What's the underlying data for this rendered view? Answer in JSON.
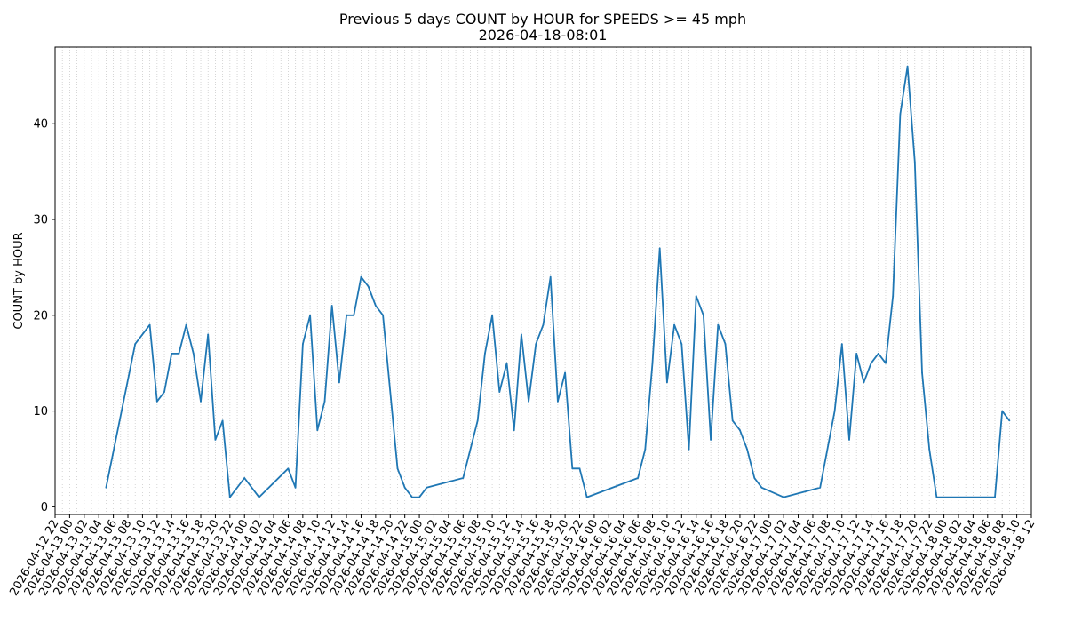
{
  "chart_data": {
    "type": "line",
    "title": "Previous 5 days COUNT by HOUR for SPEEDS >= 45 mph",
    "subtitle": "2026-04-18-08:01",
    "xlabel": "",
    "ylabel": "COUNT by HOUR",
    "ylim": [
      -0.8,
      48
    ],
    "yticks": [
      0,
      10,
      20,
      30,
      40
    ],
    "xlim": [
      "2026-04-12 22",
      "2026-04-18 12"
    ],
    "grid": {
      "x": true,
      "y": false
    },
    "line_color": "#1f77b4",
    "xtick_labels": [
      "2026-04-12 22",
      "2026-04-13 00",
      "2026-04-13 02",
      "2026-04-13 04",
      "2026-04-13 06",
      "2026-04-13 08",
      "2026-04-13 10",
      "2026-04-13 12",
      "2026-04-13 14",
      "2026-04-13 16",
      "2026-04-13 18",
      "2026-04-13 20",
      "2026-04-13 22",
      "2026-04-14 00",
      "2026-04-14 02",
      "2026-04-14 04",
      "2026-04-14 06",
      "2026-04-14 08",
      "2026-04-14 10",
      "2026-04-14 12",
      "2026-04-14 14",
      "2026-04-14 16",
      "2026-04-14 18",
      "2026-04-14 20",
      "2026-04-14 22",
      "2026-04-15 00",
      "2026-04-15 02",
      "2026-04-15 04",
      "2026-04-15 06",
      "2026-04-15 08",
      "2026-04-15 10",
      "2026-04-15 12",
      "2026-04-15 14",
      "2026-04-15 16",
      "2026-04-15 18",
      "2026-04-15 20",
      "2026-04-15 22",
      "2026-04-16 00",
      "2026-04-16 02",
      "2026-04-16 04",
      "2026-04-16 06",
      "2026-04-16 08",
      "2026-04-16 10",
      "2026-04-16 12",
      "2026-04-16 14",
      "2026-04-16 16",
      "2026-04-16 18",
      "2026-04-16 20",
      "2026-04-16 22",
      "2026-04-17 00",
      "2026-04-17 02",
      "2026-04-17 04",
      "2026-04-17 06",
      "2026-04-17 08",
      "2026-04-17 10",
      "2026-04-17 12",
      "2026-04-17 14",
      "2026-04-17 16",
      "2026-04-17 18",
      "2026-04-17 20",
      "2026-04-17 22",
      "2026-04-18 00",
      "2026-04-18 02",
      "2026-04-18 04",
      "2026-04-18 06",
      "2026-04-18 08",
      "2026-04-18 10",
      "2026-04-18 12"
    ],
    "series": [
      {
        "points": [
          [
            "2026-04-13 05",
            2
          ],
          [
            "2026-04-13 09",
            17
          ],
          [
            "2026-04-13 11",
            19
          ],
          [
            "2026-04-13 12",
            11
          ],
          [
            "2026-04-13 13",
            12
          ],
          [
            "2026-04-13 14",
            16
          ],
          [
            "2026-04-13 15",
            16
          ],
          [
            "2026-04-13 16",
            19
          ],
          [
            "2026-04-13 17",
            16
          ],
          [
            "2026-04-13 18",
            11
          ],
          [
            "2026-04-13 19",
            18
          ],
          [
            "2026-04-13 20",
            7
          ],
          [
            "2026-04-13 21",
            9
          ],
          [
            "2026-04-13 22",
            1
          ],
          [
            "2026-04-14 00",
            3
          ],
          [
            "2026-04-14 02",
            1
          ],
          [
            "2026-04-14 06",
            4
          ],
          [
            "2026-04-14 07",
            2
          ],
          [
            "2026-04-14 08",
            17
          ],
          [
            "2026-04-14 09",
            20
          ],
          [
            "2026-04-14 10",
            8
          ],
          [
            "2026-04-14 11",
            11
          ],
          [
            "2026-04-14 12",
            21
          ],
          [
            "2026-04-14 13",
            13
          ],
          [
            "2026-04-14 14",
            20
          ],
          [
            "2026-04-14 15",
            20
          ],
          [
            "2026-04-14 16",
            24
          ],
          [
            "2026-04-14 17",
            23
          ],
          [
            "2026-04-14 18",
            21
          ],
          [
            "2026-04-14 19",
            20
          ],
          [
            "2026-04-14 21",
            4
          ],
          [
            "2026-04-14 22",
            2
          ],
          [
            "2026-04-14 23",
            1
          ],
          [
            "2026-04-15 00",
            1
          ],
          [
            "2026-04-15 01",
            2
          ],
          [
            "2026-04-15 06",
            3
          ],
          [
            "2026-04-15 08",
            9
          ],
          [
            "2026-04-15 09",
            16
          ],
          [
            "2026-04-15 10",
            20
          ],
          [
            "2026-04-15 11",
            12
          ],
          [
            "2026-04-15 12",
            15
          ],
          [
            "2026-04-15 13",
            8
          ],
          [
            "2026-04-15 14",
            18
          ],
          [
            "2026-04-15 15",
            11
          ],
          [
            "2026-04-15 16",
            17
          ],
          [
            "2026-04-15 17",
            19
          ],
          [
            "2026-04-15 18",
            24
          ],
          [
            "2026-04-15 19",
            11
          ],
          [
            "2026-04-15 20",
            14
          ],
          [
            "2026-04-15 21",
            4
          ],
          [
            "2026-04-15 22",
            4
          ],
          [
            "2026-04-15 23",
            1
          ],
          [
            "2026-04-16 06",
            3
          ],
          [
            "2026-04-16 07",
            6
          ],
          [
            "2026-04-16 08",
            15
          ],
          [
            "2026-04-16 09",
            27
          ],
          [
            "2026-04-16 10",
            13
          ],
          [
            "2026-04-16 11",
            19
          ],
          [
            "2026-04-16 12",
            17
          ],
          [
            "2026-04-16 13",
            6
          ],
          [
            "2026-04-16 14",
            22
          ],
          [
            "2026-04-16 15",
            20
          ],
          [
            "2026-04-16 16",
            7
          ],
          [
            "2026-04-16 17",
            19
          ],
          [
            "2026-04-16 18",
            17
          ],
          [
            "2026-04-16 19",
            9
          ],
          [
            "2026-04-16 20",
            8
          ],
          [
            "2026-04-16 21",
            6
          ],
          [
            "2026-04-16 22",
            3
          ],
          [
            "2026-04-16 23",
            2
          ],
          [
            "2026-04-17 02",
            1
          ],
          [
            "2026-04-17 07",
            2
          ],
          [
            "2026-04-17 09",
            10
          ],
          [
            "2026-04-17 10",
            17
          ],
          [
            "2026-04-17 11",
            7
          ],
          [
            "2026-04-17 12",
            16
          ],
          [
            "2026-04-17 13",
            13
          ],
          [
            "2026-04-17 14",
            15
          ],
          [
            "2026-04-17 15",
            16
          ],
          [
            "2026-04-17 16",
            15
          ],
          [
            "2026-04-17 17",
            22
          ],
          [
            "2026-04-17 18",
            41
          ],
          [
            "2026-04-17 19",
            46
          ],
          [
            "2026-04-17 20",
            36
          ],
          [
            "2026-04-17 21",
            14
          ],
          [
            "2026-04-17 22",
            6
          ],
          [
            "2026-04-17 23",
            1
          ],
          [
            "2026-04-18 07",
            1
          ],
          [
            "2026-04-18 08",
            10
          ],
          [
            "2026-04-18 09",
            9
          ]
        ]
      }
    ]
  }
}
